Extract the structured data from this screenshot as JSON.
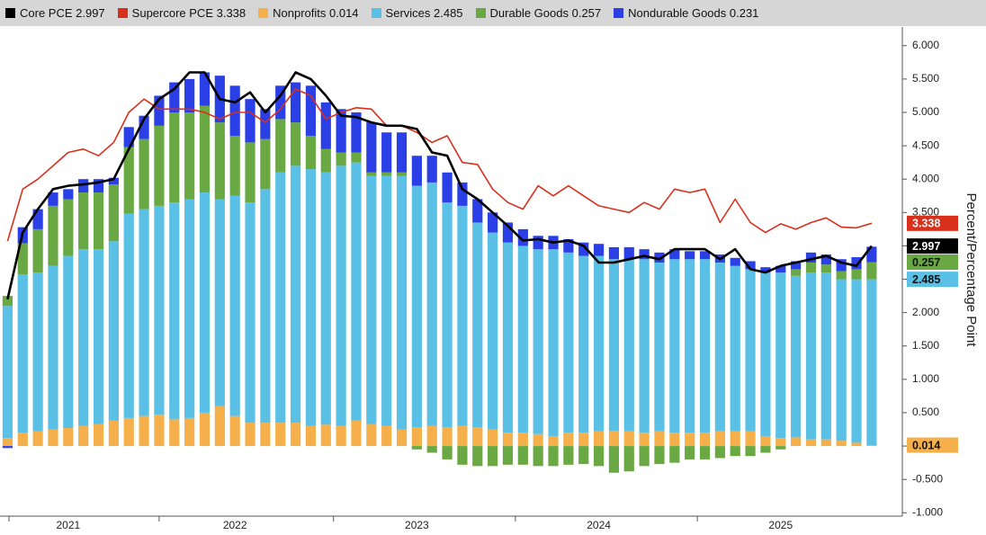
{
  "chart_data": {
    "type": "bar",
    "stacked": true,
    "legend": "top",
    "grid": false,
    "y_label": "Percent/Percentage Point",
    "categories": [
      null,
      null,
      null,
      null,
      "2021",
      null,
      null,
      null,
      null,
      null,
      null,
      null,
      null,
      null,
      null,
      "2022",
      null,
      null,
      null,
      null,
      null,
      null,
      null,
      null,
      null,
      null,
      null,
      "2023",
      null,
      null,
      null,
      null,
      null,
      null,
      null,
      null,
      null,
      null,
      null,
      "2024",
      null,
      null,
      null,
      null,
      null,
      null,
      null,
      null,
      null,
      null,
      null,
      "2025",
      null,
      null,
      null,
      null,
      null,
      null
    ],
    "ylim": [
      -1.05,
      6.28
    ],
    "yticks": [
      {
        "value": -1,
        "label": "-1.000"
      },
      {
        "value": -0.5,
        "label": "-0.500"
      },
      {
        "value": 0,
        "label": "0.000"
      },
      {
        "value": 0.5,
        "label": "0.500"
      },
      {
        "value": 1,
        "label": "1.000"
      },
      {
        "value": 1.5,
        "label": "1.500"
      },
      {
        "value": 2,
        "label": "2.000"
      },
      {
        "value": 2.5,
        "label": "2.500"
      },
      {
        "value": 3,
        "label": "3.000"
      },
      {
        "value": 3.5,
        "label": "3.500"
      },
      {
        "value": 4,
        "label": "4.000"
      },
      {
        "value": 4.5,
        "label": "4.500"
      },
      {
        "value": 5,
        "label": "5.000"
      },
      {
        "value": 5.5,
        "label": "5.500"
      },
      {
        "value": 6,
        "label": "6.000"
      }
    ],
    "series": [
      {
        "name": "Core PCE 2.997",
        "type": "line",
        "color": "#000000",
        "end_label": true,
        "values": [
          2.2,
          3.2,
          3.55,
          3.85,
          3.9,
          3.92,
          3.95,
          4.0,
          4.45,
          4.9,
          5.2,
          5.35,
          5.6,
          5.6,
          5.2,
          5.15,
          5.3,
          5.0,
          5.25,
          5.6,
          5.5,
          5.25,
          4.95,
          4.93,
          4.85,
          4.8,
          4.8,
          4.75,
          4.4,
          4.35,
          3.85,
          3.7,
          3.5,
          3.3,
          3.08,
          3.1,
          3.05,
          3.08,
          3.0,
          2.75,
          2.75,
          2.8,
          2.85,
          2.8,
          2.95,
          2.95,
          2.95,
          2.8,
          2.95,
          2.65,
          2.6,
          2.7,
          2.75,
          2.8,
          2.85,
          2.75,
          2.7,
          2.997
        ]
      },
      {
        "name": "Supercore PCE 3.338",
        "type": "line",
        "color": "#d9301c",
        "end_label": true,
        "values": [
          3.07,
          3.85,
          4.0,
          4.2,
          4.4,
          4.45,
          4.35,
          4.55,
          5.0,
          5.2,
          5.05,
          5.05,
          5.05,
          5.0,
          4.9,
          5.0,
          5.0,
          4.85,
          5.05,
          5.35,
          5.25,
          4.9,
          5.0,
          5.07,
          5.05,
          4.8,
          4.8,
          4.7,
          4.55,
          4.65,
          4.25,
          4.22,
          3.85,
          3.65,
          3.55,
          3.9,
          3.75,
          3.9,
          3.75,
          3.6,
          3.55,
          3.5,
          3.65,
          3.55,
          3.85,
          3.8,
          3.85,
          3.35,
          3.7,
          3.35,
          3.2,
          3.33,
          3.25,
          3.35,
          3.42,
          3.28,
          3.27,
          3.338
        ]
      },
      {
        "name": "Nonprofits 0.014",
        "type": "bar",
        "color": "#f5b04b",
        "end_label": true,
        "values": [
          0.12,
          0.2,
          0.22,
          0.25,
          0.27,
          0.3,
          0.33,
          0.38,
          0.42,
          0.45,
          0.47,
          0.4,
          0.42,
          0.5,
          0.6,
          0.45,
          0.35,
          0.35,
          0.35,
          0.35,
          0.3,
          0.32,
          0.3,
          0.38,
          0.33,
          0.3,
          0.25,
          0.28,
          0.3,
          0.28,
          0.3,
          0.28,
          0.25,
          0.2,
          0.2,
          0.18,
          0.15,
          0.2,
          0.2,
          0.22,
          0.23,
          0.22,
          0.2,
          0.22,
          0.2,
          0.2,
          0.2,
          0.22,
          0.22,
          0.22,
          0.15,
          0.12,
          0.13,
          0.1,
          0.1,
          0.08,
          0.05,
          0.014
        ]
      },
      {
        "name": "Services 2.485",
        "type": "bar",
        "color": "#5bc0e5",
        "end_label": true,
        "values": [
          1.98,
          2.37,
          2.38,
          2.45,
          2.58,
          2.65,
          2.62,
          2.69,
          3.06,
          3.1,
          3.13,
          3.25,
          3.28,
          3.3,
          3.1,
          3.3,
          3.3,
          3.5,
          3.75,
          3.85,
          3.85,
          3.78,
          3.9,
          3.87,
          3.72,
          3.75,
          3.8,
          3.62,
          3.65,
          3.37,
          3.3,
          3.07,
          2.95,
          2.85,
          2.8,
          2.77,
          2.8,
          2.7,
          2.65,
          2.63,
          2.57,
          2.58,
          2.6,
          2.53,
          2.6,
          2.6,
          2.6,
          2.53,
          2.48,
          2.43,
          2.45,
          2.48,
          2.42,
          2.5,
          2.5,
          2.42,
          2.45,
          2.485
        ]
      },
      {
        "name": "Durable Goods 0.257",
        "type": "bar",
        "color": "#6aa843",
        "end_label": true,
        "values": [
          0.15,
          0.47,
          0.65,
          0.9,
          0.85,
          0.85,
          0.85,
          0.85,
          1.0,
          1.05,
          1.2,
          1.35,
          1.3,
          1.3,
          1.15,
          0.9,
          0.9,
          0.75,
          0.8,
          0.65,
          0.5,
          0.35,
          0.2,
          0.15,
          0.05,
          0.05,
          0.05,
          -0.05,
          -0.1,
          -0.2,
          -0.28,
          -0.3,
          -0.3,
          -0.28,
          -0.28,
          -0.3,
          -0.3,
          -0.28,
          -0.27,
          -0.3,
          -0.4,
          -0.38,
          -0.3,
          -0.27,
          -0.25,
          -0.2,
          -0.2,
          -0.18,
          -0.15,
          -0.15,
          -0.1,
          -0.05,
          0.1,
          0.15,
          0.12,
          0.12,
          0.15,
          0.257
        ]
      },
      {
        "name": "Nondurable Goods 0.231",
        "type": "bar",
        "color": "#2a3fe6",
        "end_label": false,
        "values": [
          -0.03,
          0.24,
          0.3,
          0.2,
          0.15,
          0.2,
          0.2,
          0.1,
          0.3,
          0.35,
          0.45,
          0.45,
          0.5,
          0.5,
          0.7,
          0.75,
          0.65,
          0.45,
          0.5,
          0.6,
          0.75,
          0.7,
          0.65,
          0.6,
          0.75,
          0.6,
          0.6,
          0.45,
          0.4,
          0.45,
          0.35,
          0.35,
          0.3,
          0.3,
          0.25,
          0.2,
          0.2,
          0.2,
          0.2,
          0.18,
          0.18,
          0.18,
          0.15,
          0.15,
          0.15,
          0.12,
          0.12,
          0.12,
          0.12,
          0.12,
          0.08,
          0.1,
          0.12,
          0.15,
          0.15,
          0.18,
          0.18,
          0.231
        ]
      }
    ]
  }
}
